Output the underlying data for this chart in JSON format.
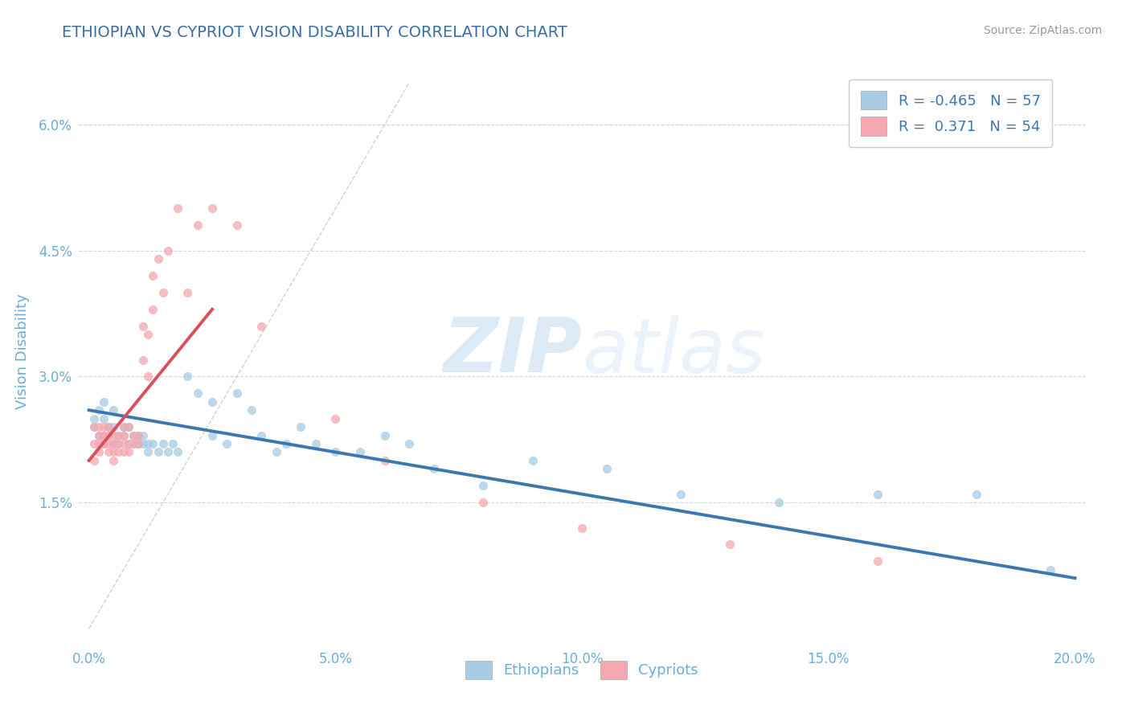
{
  "title": "ETHIOPIAN VS CYPRIOT VISION DISABILITY CORRELATION CHART",
  "source": "Source: ZipAtlas.com",
  "ylabel": "Vision Disability",
  "xlim": [
    -0.002,
    0.202
  ],
  "ylim": [
    -0.002,
    0.068
  ],
  "xticks": [
    0.0,
    0.05,
    0.1,
    0.15,
    0.2
  ],
  "xticklabels": [
    "0.0%",
    "5.0%",
    "10.0%",
    "15.0%",
    "20.0%"
  ],
  "yticks": [
    0.015,
    0.03,
    0.045,
    0.06
  ],
  "yticklabels": [
    "1.5%",
    "3.0%",
    "4.5%",
    "6.0%"
  ],
  "legend_R": [
    -0.465,
    0.371
  ],
  "legend_N": [
    57,
    54
  ],
  "blue_color": "#a8cce4",
  "pink_color": "#f4a8b0",
  "blue_line_color": "#3b78b0",
  "pink_line_color": "#d94f5c",
  "title_color": "#3a6ea8",
  "axis_color": "#6baed6",
  "background_color": "#ffffff",
  "watermark_zip": "ZIP",
  "watermark_atlas": "atlas",
  "ethiopians_x": [
    0.001,
    0.001,
    0.002,
    0.002,
    0.003,
    0.003,
    0.003,
    0.004,
    0.004,
    0.005,
    0.005,
    0.005,
    0.006,
    0.006,
    0.007,
    0.007,
    0.008,
    0.008,
    0.009,
    0.009,
    0.01,
    0.01,
    0.011,
    0.011,
    0.012,
    0.012,
    0.013,
    0.014,
    0.015,
    0.016,
    0.017,
    0.018,
    0.02,
    0.022,
    0.025,
    0.025,
    0.028,
    0.03,
    0.033,
    0.035,
    0.038,
    0.04,
    0.043,
    0.046,
    0.05,
    0.055,
    0.06,
    0.065,
    0.07,
    0.08,
    0.09,
    0.105,
    0.12,
    0.14,
    0.16,
    0.18,
    0.195
  ],
  "ethiopians_y": [
    0.025,
    0.024,
    0.026,
    0.023,
    0.022,
    0.025,
    0.027,
    0.023,
    0.024,
    0.022,
    0.024,
    0.026,
    0.023,
    0.022,
    0.024,
    0.023,
    0.022,
    0.024,
    0.023,
    0.022,
    0.023,
    0.022,
    0.022,
    0.023,
    0.021,
    0.022,
    0.022,
    0.021,
    0.022,
    0.021,
    0.022,
    0.021,
    0.03,
    0.028,
    0.027,
    0.023,
    0.022,
    0.028,
    0.026,
    0.023,
    0.021,
    0.022,
    0.024,
    0.022,
    0.021,
    0.021,
    0.023,
    0.022,
    0.019,
    0.017,
    0.02,
    0.019,
    0.016,
    0.015,
    0.016,
    0.016,
    0.007
  ],
  "cypriots_x": [
    0.001,
    0.001,
    0.001,
    0.002,
    0.002,
    0.002,
    0.002,
    0.003,
    0.003,
    0.003,
    0.003,
    0.004,
    0.004,
    0.004,
    0.004,
    0.005,
    0.005,
    0.005,
    0.005,
    0.006,
    0.006,
    0.006,
    0.007,
    0.007,
    0.007,
    0.007,
    0.008,
    0.008,
    0.008,
    0.009,
    0.009,
    0.01,
    0.01,
    0.011,
    0.011,
    0.012,
    0.012,
    0.013,
    0.013,
    0.014,
    0.015,
    0.016,
    0.018,
    0.02,
    0.022,
    0.025,
    0.03,
    0.035,
    0.05,
    0.06,
    0.08,
    0.1,
    0.13,
    0.16
  ],
  "cypriots_y": [
    0.024,
    0.022,
    0.02,
    0.024,
    0.022,
    0.023,
    0.021,
    0.024,
    0.023,
    0.022,
    0.023,
    0.024,
    0.023,
    0.022,
    0.021,
    0.023,
    0.022,
    0.021,
    0.02,
    0.023,
    0.022,
    0.021,
    0.024,
    0.023,
    0.022,
    0.021,
    0.024,
    0.022,
    0.021,
    0.023,
    0.022,
    0.023,
    0.022,
    0.036,
    0.032,
    0.03,
    0.035,
    0.038,
    0.042,
    0.044,
    0.04,
    0.045,
    0.05,
    0.04,
    0.048,
    0.05,
    0.048,
    0.036,
    0.025,
    0.02,
    0.015,
    0.012,
    0.01,
    0.008
  ],
  "ref_line_x": [
    0.0,
    0.065
  ],
  "ref_line_y": [
    0.0,
    0.065
  ],
  "blue_trend_x": [
    0.0,
    0.2
  ],
  "blue_trend_y": [
    0.026,
    0.006
  ],
  "pink_trend_x": [
    0.0,
    0.025
  ],
  "pink_trend_y": [
    0.02,
    0.038
  ]
}
